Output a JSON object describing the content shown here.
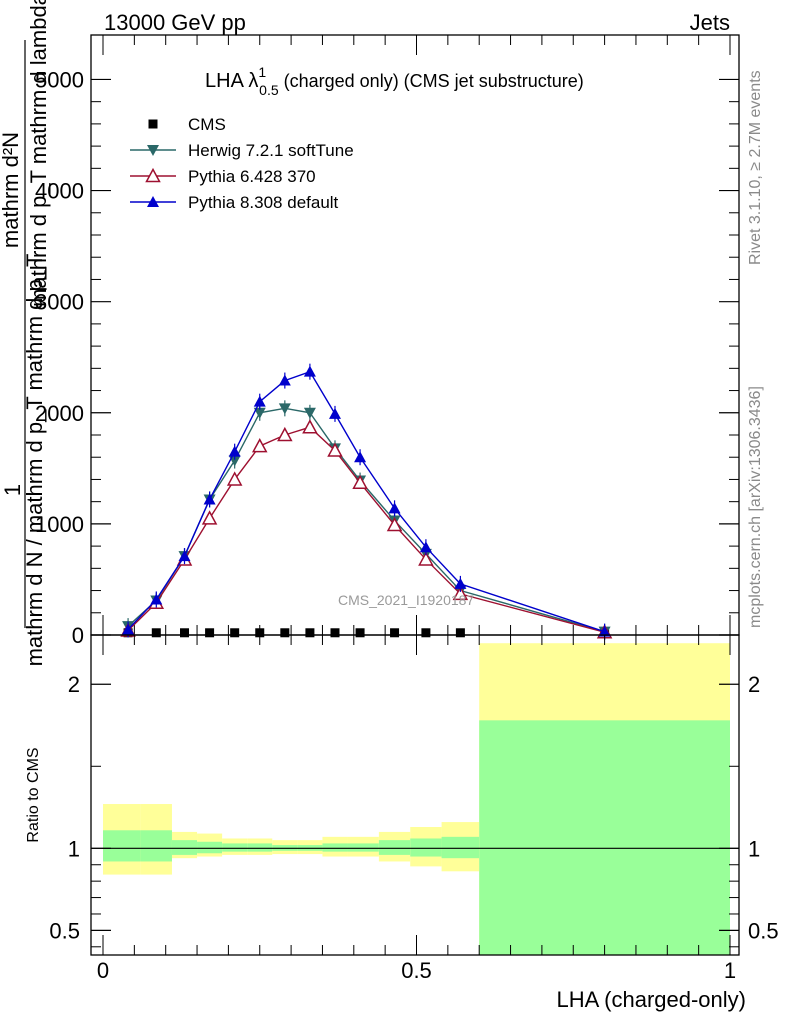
{
  "header": {
    "left": "13000 GeV pp",
    "right": "Jets"
  },
  "side": {
    "rivet": "Rivet 3.1.10, ≥ 2.7M events",
    "mcplots": "mcplots.cern.ch [arXiv:1306.3436]"
  },
  "watermark": "CMS_2021_I1920187",
  "chart_data": [
    {
      "type": "line",
      "panel": "main",
      "title": "LHA λ¹₀.₅ (charged only) (CMS jet substructure)",
      "title_main": "LHA λ",
      "title_sup": "1",
      "title_sub": "0.5",
      "title_rest": " (charged only) (CMS jet substructure)",
      "ylabel_numerator": "mathrm d²N",
      "ylabel_numerator_inner": "mathrm d p_T mathrm d lambda",
      "ylabel_fraction_one": "1",
      "ylabel_denominator": "mathrm d N / mathrm d p_T mathrm d p_T",
      "xlim": [
        0,
        1
      ],
      "ylim": [
        0,
        5000
      ],
      "yticks": [
        0,
        1000,
        2000,
        3000,
        4000,
        5000
      ],
      "ytick_labels": [
        "0",
        "1000",
        "2000",
        "3000",
        "4000",
        "5000"
      ],
      "x": [
        0.04,
        0.085,
        0.13,
        0.17,
        0.21,
        0.25,
        0.29,
        0.33,
        0.37,
        0.41,
        0.465,
        0.515,
        0.57,
        0.8
      ],
      "series": [
        {
          "name": "CMS",
          "color": "#000000",
          "marker": "square",
          "values": [
            20,
            20,
            20,
            20,
            20,
            20,
            20,
            20,
            20,
            20,
            20,
            20,
            20,
            20
          ]
        },
        {
          "name": "Herwig 7.2.1 softTune",
          "color": "#2a6868",
          "marker": "triangle-down",
          "values": [
            80,
            310,
            710,
            1220,
            1570,
            2000,
            2040,
            2000,
            1680,
            1390,
            1030,
            730,
            400,
            30
          ]
        },
        {
          "name": "Pythia 6.428 370",
          "color": "#9e1030",
          "marker": "triangle-up-open",
          "values": [
            40,
            290,
            680,
            1050,
            1400,
            1700,
            1800,
            1870,
            1660,
            1370,
            990,
            680,
            370,
            25
          ]
        },
        {
          "name": "Pythia 8.308 default",
          "color": "#0000cc",
          "marker": "triangle-up",
          "values": [
            50,
            320,
            710,
            1220,
            1650,
            2100,
            2290,
            2370,
            1990,
            1600,
            1140,
            790,
            460,
            30
          ]
        }
      ]
    },
    {
      "type": "area",
      "panel": "ratio",
      "ylabel": "Ratio to CMS",
      "xlabel": "LHA (charged-only)",
      "xlim": [
        0,
        1
      ],
      "ylim": [
        0.35,
        2.3
      ],
      "xticks": [
        0,
        0.5,
        1
      ],
      "xtick_labels": [
        "0",
        "0.5",
        "1"
      ],
      "yticks": [
        0.5,
        1,
        2
      ],
      "ytick_labels": [
        "0.5",
        "1",
        "2"
      ],
      "bins": [
        0,
        0.06,
        0.11,
        0.15,
        0.19,
        0.23,
        0.27,
        0.31,
        0.35,
        0.39,
        0.44,
        0.49,
        0.54,
        0.6,
        1.0
      ],
      "band_outer": [
        [
          0.84,
          1.27
        ],
        [
          0.84,
          1.27
        ],
        [
          0.94,
          1.1
        ],
        [
          0.95,
          1.09
        ],
        [
          0.96,
          1.06
        ],
        [
          0.96,
          1.06
        ],
        [
          0.965,
          1.05
        ],
        [
          0.965,
          1.05
        ],
        [
          0.95,
          1.07
        ],
        [
          0.95,
          1.07
        ],
        [
          0.92,
          1.1
        ],
        [
          0.89,
          1.13
        ],
        [
          0.86,
          1.16
        ],
        [
          0.3,
          2.25
        ]
      ],
      "band_inner": [
        [
          0.92,
          1.11
        ],
        [
          0.92,
          1.11
        ],
        [
          0.96,
          1.05
        ],
        [
          0.97,
          1.04
        ],
        [
          0.98,
          1.03
        ],
        [
          0.98,
          1.03
        ],
        [
          0.985,
          1.02
        ],
        [
          0.985,
          1.02
        ],
        [
          0.98,
          1.03
        ],
        [
          0.98,
          1.03
        ],
        [
          0.96,
          1.05
        ],
        [
          0.95,
          1.06
        ],
        [
          0.94,
          1.07
        ],
        [
          0.3,
          1.78
        ]
      ],
      "reference_line": 1,
      "colors": {
        "outer": "#ffff99",
        "inner": "#99ff99"
      }
    }
  ]
}
